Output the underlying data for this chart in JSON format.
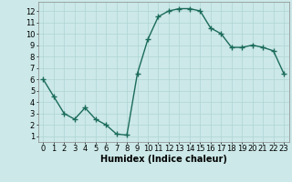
{
  "x": [
    0,
    1,
    2,
    3,
    4,
    5,
    6,
    7,
    8,
    9,
    10,
    11,
    12,
    13,
    14,
    15,
    16,
    17,
    18,
    19,
    20,
    21,
    22,
    23
  ],
  "y": [
    6.0,
    4.5,
    3.0,
    2.5,
    3.5,
    2.5,
    2.0,
    1.2,
    1.1,
    6.5,
    9.5,
    11.5,
    12.0,
    12.2,
    12.2,
    12.0,
    10.5,
    10.0,
    8.8,
    8.8,
    9.0,
    8.8,
    8.5,
    6.5
  ],
  "xlabel": "Humidex (Indice chaleur)",
  "xlim": [
    -0.5,
    23.5
  ],
  "ylim": [
    0.5,
    12.8
  ],
  "ytick_values": [
    1,
    2,
    3,
    4,
    5,
    6,
    7,
    8,
    9,
    10,
    11,
    12
  ],
  "line_color": "#1a6b5a",
  "marker": "+",
  "bg_color": "#cce8e8",
  "grid_color": "#aed4d4",
  "xlabel_fontsize": 7,
  "tick_fontsize": 6,
  "line_width": 1.0,
  "marker_size": 4,
  "marker_edge_width": 1.0
}
